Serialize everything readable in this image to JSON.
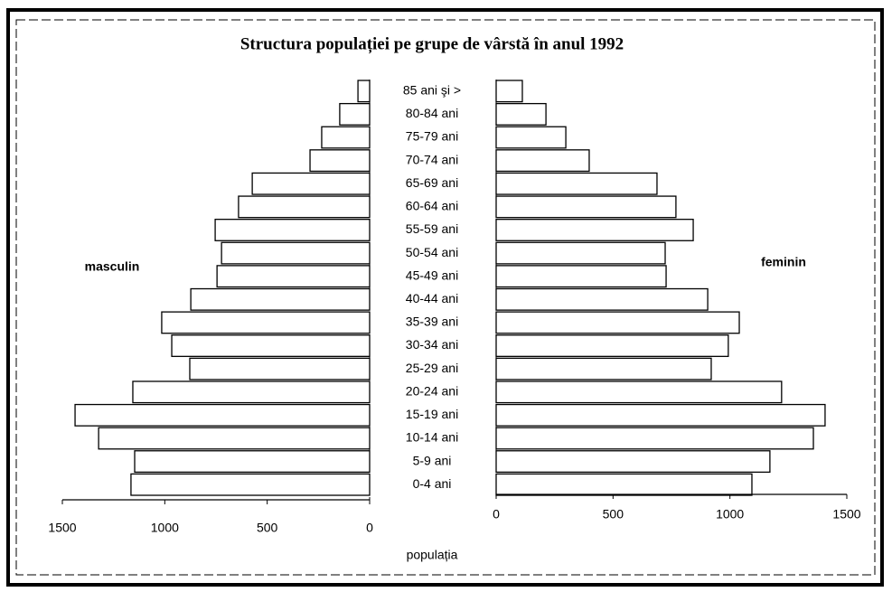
{
  "chart_data": {
    "type": "pyramid",
    "title": "Structura populației pe grupe de vârstă în anul 1992",
    "categories": [
      "85 ani şi >",
      "80-84 ani",
      "75-79 ani",
      "70-74 ani",
      "65-69 ani",
      "60-64 ani",
      "55-59 ani",
      "50-54 ani",
      "45-49 ani",
      "40-44 ani",
      "35-39 ani",
      "30-34 ani",
      "25-29 ani",
      "20-24 ani",
      "15-19 ani",
      "10-14 ani",
      "5-9 ani",
      "0-4 ani"
    ],
    "series": [
      {
        "name": "masculin",
        "color": "#ffffff",
        "values": [
          57,
          146,
          234,
          291,
          573,
          640,
          754,
          723,
          745,
          873,
          1015,
          966,
          878,
          1156,
          1438,
          1323,
          1147,
          1165
        ]
      },
      {
        "name": "feminin",
        "color": "#ffffff",
        "values": [
          112,
          213,
          298,
          398,
          688,
          769,
          843,
          723,
          727,
          905,
          1040,
          993,
          920,
          1221,
          1407,
          1357,
          1171,
          1094
        ]
      }
    ],
    "xlabel": "populația",
    "xlim": [
      0,
      1500
    ],
    "xticks": [
      0,
      500,
      1000,
      1500
    ]
  }
}
